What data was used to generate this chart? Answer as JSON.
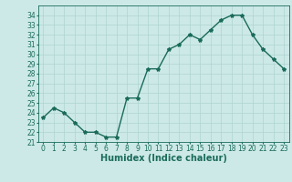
{
  "x": [
    0,
    1,
    2,
    3,
    4,
    5,
    6,
    7,
    8,
    9,
    10,
    11,
    12,
    13,
    14,
    15,
    16,
    17,
    18,
    19,
    20,
    21,
    22,
    23
  ],
  "y": [
    23.5,
    24.5,
    24.0,
    23.0,
    22.0,
    22.0,
    21.5,
    21.5,
    25.5,
    25.5,
    28.5,
    28.5,
    30.5,
    31.0,
    32.0,
    31.5,
    32.5,
    33.5,
    34.0,
    34.0,
    32.0,
    30.5,
    29.5,
    28.5
  ],
  "line_color": "#1a6b5a",
  "marker": "*",
  "marker_size": 3,
  "bg_color": "#cce9e7",
  "grid_color": "#aed4d1",
  "xlabel": "Humidex (Indice chaleur)",
  "ylim": [
    21,
    35
  ],
  "xlim": [
    -0.5,
    23.5
  ],
  "yticks": [
    21,
    22,
    23,
    24,
    25,
    26,
    27,
    28,
    29,
    30,
    31,
    32,
    33,
    34
  ],
  "xticks": [
    0,
    1,
    2,
    3,
    4,
    5,
    6,
    7,
    8,
    9,
    10,
    11,
    12,
    13,
    14,
    15,
    16,
    17,
    18,
    19,
    20,
    21,
    22,
    23
  ],
  "tick_fontsize": 5.5,
  "xlabel_fontsize": 7,
  "line_width": 1.0
}
